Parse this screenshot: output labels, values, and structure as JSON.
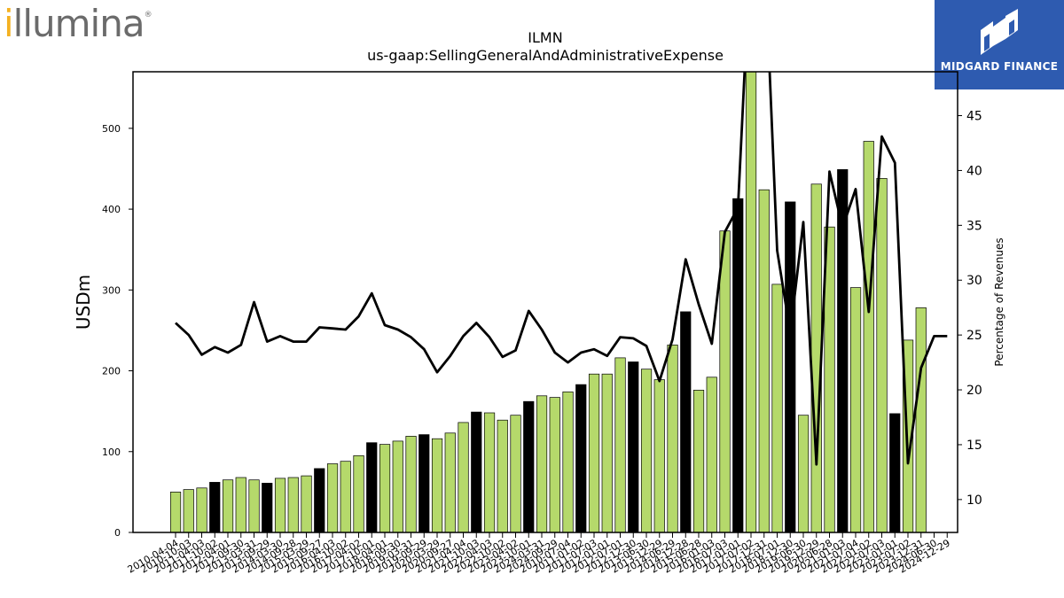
{
  "logos": {
    "left_text_dot": "i",
    "left_text_rest": "llumina",
    "left_mark": "®",
    "right_text": "MIDGARD FINANCE",
    "right_color": "#2e5bb0"
  },
  "chart_data": {
    "type": "bar",
    "title": "ILMN",
    "subtitle": "us-gaap:SellingGeneralAndAdministrativeExpense",
    "ylabel": "USDm",
    "y2label": "Percentage of Revenues",
    "ylim": [
      0,
      570
    ],
    "y2lim": [
      7,
      49
    ],
    "yticks": [
      0,
      100,
      200,
      300,
      400,
      500
    ],
    "y2ticks": [
      10,
      15,
      20,
      25,
      30,
      35,
      40,
      45
    ],
    "bar_color": "#b5d96b",
    "highlight_color": "#000000",
    "line_color": "#000000",
    "categories": [
      "2010-04-04",
      "2010-07-04",
      "2010-10-03",
      "2011-01-02",
      "2011-04-03",
      "2011-07-03",
      "2011-10-02",
      "2012-01-01",
      "2012-04-01",
      "2012-07-01",
      "2012-09-30",
      "2012-12-30",
      "2013-03-31",
      "2013-06-30",
      "2013-09-29",
      "2013-12-29",
      "2014-03-30",
      "2014-06-29",
      "2014-09-28",
      "2014-12-28",
      "2015-03-29",
      "2015-06-28",
      "2015-09-27",
      "2016-01-03",
      "2016-04-03",
      "2016-07-03",
      "2016-10-02",
      "2017-01-01",
      "2017-04-02",
      "2017-07-02",
      "2017-10-01",
      "2017-12-31",
      "2018-04-01",
      "2018-07-01",
      "2018-09-30",
      "2018-12-30",
      "2019-03-31",
      "2019-06-30",
      "2019-09-29",
      "2019-12-29",
      "2020-03-29",
      "2020-06-28",
      "2020-09-27",
      "2021-01-03",
      "2021-04-04",
      "2021-07-04",
      "2021-10-03",
      "2022-01-02",
      "2022-04-03",
      "2022-07-03",
      "2022-10-02",
      "2023-01-01",
      "2023-04-02",
      "2023-07-02",
      "2023-10-01",
      "2023-12-31",
      "2024-03-31",
      "2024-06-30",
      "2024-09-29",
      "2024-12-29"
    ],
    "tick_labels": [
      "2010-04-04",
      "2010-10-03",
      "2011-04-03",
      "2011-10-02",
      "2012-04-01",
      "2012-09-30",
      "2013-03-31",
      "2013-09-29",
      "2014-03-30",
      "2014-09-28",
      "2015-03-29",
      "2015-09-27",
      "2016-04-03",
      "2016-10-02",
      "2017-04-02",
      "2017-10-01",
      "2018-04-01",
      "2018-09-30",
      "2019-03-31",
      "2019-09-29",
      "2020-03-29",
      "2020-09-27",
      "2021-04-04",
      "2021-10-03",
      "2022-04-03",
      "2022-10-02",
      "2023-04-02",
      "2023-10-01",
      "2024-03-31",
      "2024-09-29",
      "2010-07-04",
      "2011-01-02",
      "2011-07-03",
      "2012-01-01",
      "2012-07-01",
      "2012-12-30",
      "2013-06-30",
      "2013-12-29",
      "2014-06-29",
      "2014-12-28",
      "2015-06-28",
      "2016-01-03",
      "2016-07-03",
      "2017-01-01",
      "2017-07-02",
      "2017-12-31",
      "2018-07-01",
      "2018-12-30",
      "2019-06-30",
      "2019-12-29",
      "2020-06-28",
      "2021-01-03",
      "2021-07-04",
      "2022-01-02",
      "2022-07-03",
      "2023-01-01",
      "2023-07-02",
      "2023-12-31",
      "2024-06-30",
      "2024-12-29"
    ],
    "values": [
      50,
      53,
      55,
      62,
      65,
      68,
      65,
      61,
      67,
      68,
      70,
      79,
      85,
      88,
      95,
      111,
      109,
      113,
      119,
      121,
      116,
      123,
      136,
      149,
      148,
      139,
      145,
      162,
      169,
      167,
      174,
      183,
      196,
      196,
      216,
      211,
      202,
      189,
      232,
      273,
      176,
      192,
      373,
      413,
      575,
      424,
      307,
      409,
      145,
      431,
      378,
      449,
      303,
      484,
      438,
      147,
      238,
      278,
      0,
      0
    ],
    "highlight": [
      false,
      false,
      false,
      true,
      false,
      false,
      false,
      true,
      false,
      false,
      false,
      true,
      false,
      false,
      false,
      true,
      false,
      false,
      false,
      true,
      false,
      false,
      false,
      true,
      false,
      false,
      false,
      true,
      false,
      false,
      false,
      true,
      false,
      false,
      false,
      true,
      false,
      false,
      false,
      true,
      false,
      false,
      false,
      true,
      false,
      false,
      false,
      true,
      false,
      false,
      false,
      true,
      false,
      false,
      false,
      true,
      false,
      false,
      false,
      true
    ],
    "pct_of_revenues": [
      26.1,
      25.0,
      23.2,
      23.9,
      23.4,
      24.1,
      28.0,
      24.4,
      24.9,
      24.4,
      24.4,
      25.7,
      25.6,
      25.5,
      26.7,
      28.8,
      25.9,
      25.5,
      24.8,
      23.7,
      21.6,
      23.1,
      24.9,
      26.1,
      24.8,
      23.0,
      23.6,
      27.2,
      25.5,
      23.4,
      22.5,
      23.4,
      23.7,
      23.1,
      24.8,
      24.7,
      24.0,
      20.8,
      24.6,
      31.9,
      27.8,
      24.2,
      34.4,
      36.6,
      61.0,
      61.0,
      32.7,
      25.2,
      35.3,
      13.2,
      39.9,
      34.8,
      38.3,
      27.1,
      43.1,
      40.7,
      13.3,
      22.0,
      24.9,
      24.9
    ]
  }
}
